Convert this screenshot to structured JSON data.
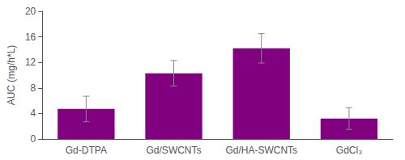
{
  "chart_data": {
    "type": "bar",
    "categories": [
      "Gd-DTPA",
      "Gd/SWCNTs",
      "Gd/HA-SWCNTs",
      "GdCl₃"
    ],
    "values": [
      4.7,
      10.3,
      14.2,
      3.2
    ],
    "errors": [
      2.0,
      2.0,
      2.3,
      1.7
    ],
    "color": "#800080",
    "ylabel": "AUC (mg/h*L)",
    "ylim": [
      0,
      20
    ],
    "yticks": [
      0,
      4,
      8,
      12,
      16,
      20
    ],
    "grid": false
  }
}
